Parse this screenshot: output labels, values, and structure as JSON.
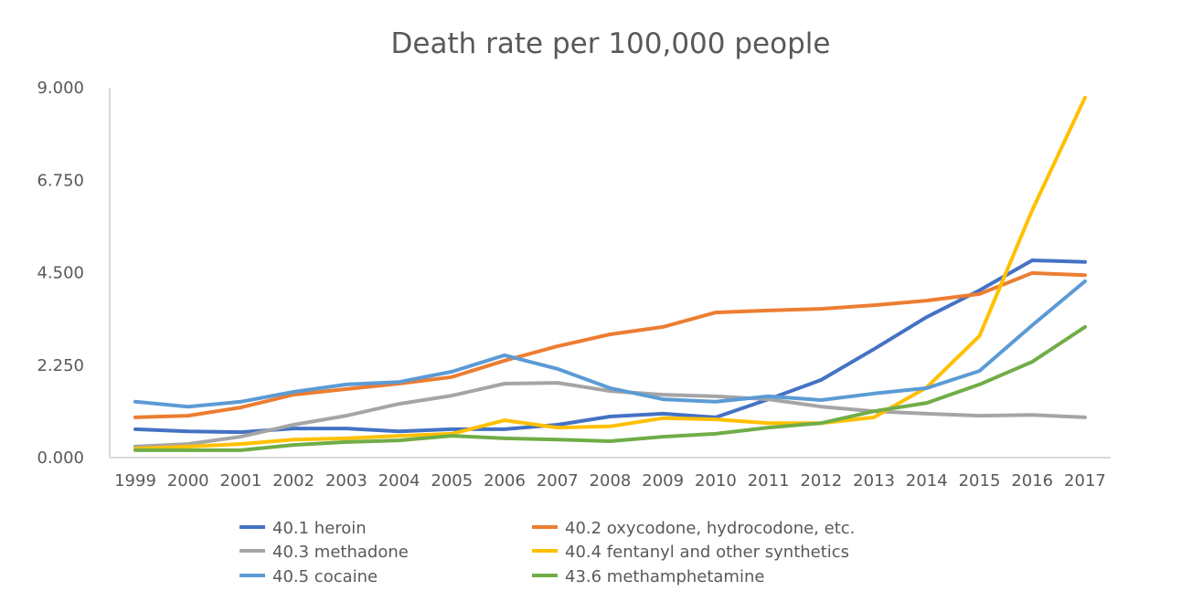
{
  "chart_data": {
    "type": "line",
    "title": "Death rate per 100,000 people",
    "xlabel": "",
    "ylabel": "",
    "ylim": [
      0,
      9
    ],
    "yticks": [
      "0.000",
      "2.250",
      "4.500",
      "6.750",
      "9.000"
    ],
    "ytick_values": [
      0,
      2.25,
      4.5,
      6.75,
      9
    ],
    "grid": false,
    "legend_position": "bottom",
    "categories": [
      "1999",
      "2000",
      "2001",
      "2002",
      "2003",
      "2004",
      "2005",
      "2006",
      "2007",
      "2008",
      "2009",
      "2010",
      "2011",
      "2012",
      "2013",
      "2014",
      "2015",
      "2016",
      "2017"
    ],
    "series": [
      {
        "name": "40.1 heroin",
        "color": "#4472C4",
        "values": [
          0.69,
          0.64,
          0.62,
          0.71,
          0.71,
          0.64,
          0.69,
          0.69,
          0.8,
          1.0,
          1.07,
          0.98,
          1.42,
          1.89,
          2.64,
          3.42,
          4.07,
          4.8,
          4.76
        ]
      },
      {
        "name": "40.2 oxycodone, hydrocodone, etc.",
        "color": "#ED7D31",
        "values": [
          0.98,
          1.02,
          1.22,
          1.53,
          1.67,
          1.8,
          1.96,
          2.36,
          2.71,
          3.0,
          3.18,
          3.53,
          3.58,
          3.62,
          3.71,
          3.82,
          3.98,
          4.49,
          4.44
        ]
      },
      {
        "name": "40.3 methadone",
        "color": "#A5A5A5",
        "values": [
          0.27,
          0.33,
          0.51,
          0.8,
          1.02,
          1.31,
          1.51,
          1.8,
          1.82,
          1.62,
          1.53,
          1.49,
          1.42,
          1.24,
          1.13,
          1.07,
          1.02,
          1.04,
          0.98
        ]
      },
      {
        "name": "40.4 fentanyl and other synthetics",
        "color": "#FFC000",
        "values": [
          0.22,
          0.27,
          0.33,
          0.44,
          0.47,
          0.53,
          0.58,
          0.91,
          0.73,
          0.76,
          0.96,
          0.93,
          0.84,
          0.84,
          0.98,
          1.71,
          2.96,
          6.02,
          8.76
        ]
      },
      {
        "name": "40.5 cocaine",
        "color": "#5B9BD5",
        "values": [
          1.36,
          1.24,
          1.36,
          1.6,
          1.78,
          1.84,
          2.09,
          2.49,
          2.16,
          1.69,
          1.42,
          1.36,
          1.49,
          1.4,
          1.56,
          1.69,
          2.11,
          3.22,
          4.29
        ]
      },
      {
        "name": "43.6 methamphetamine",
        "color": "#70AD47",
        "values": [
          0.18,
          0.18,
          0.18,
          0.31,
          0.38,
          0.42,
          0.53,
          0.47,
          0.44,
          0.4,
          0.51,
          0.58,
          0.73,
          0.84,
          1.13,
          1.33,
          1.78,
          2.33,
          3.18
        ]
      }
    ]
  }
}
